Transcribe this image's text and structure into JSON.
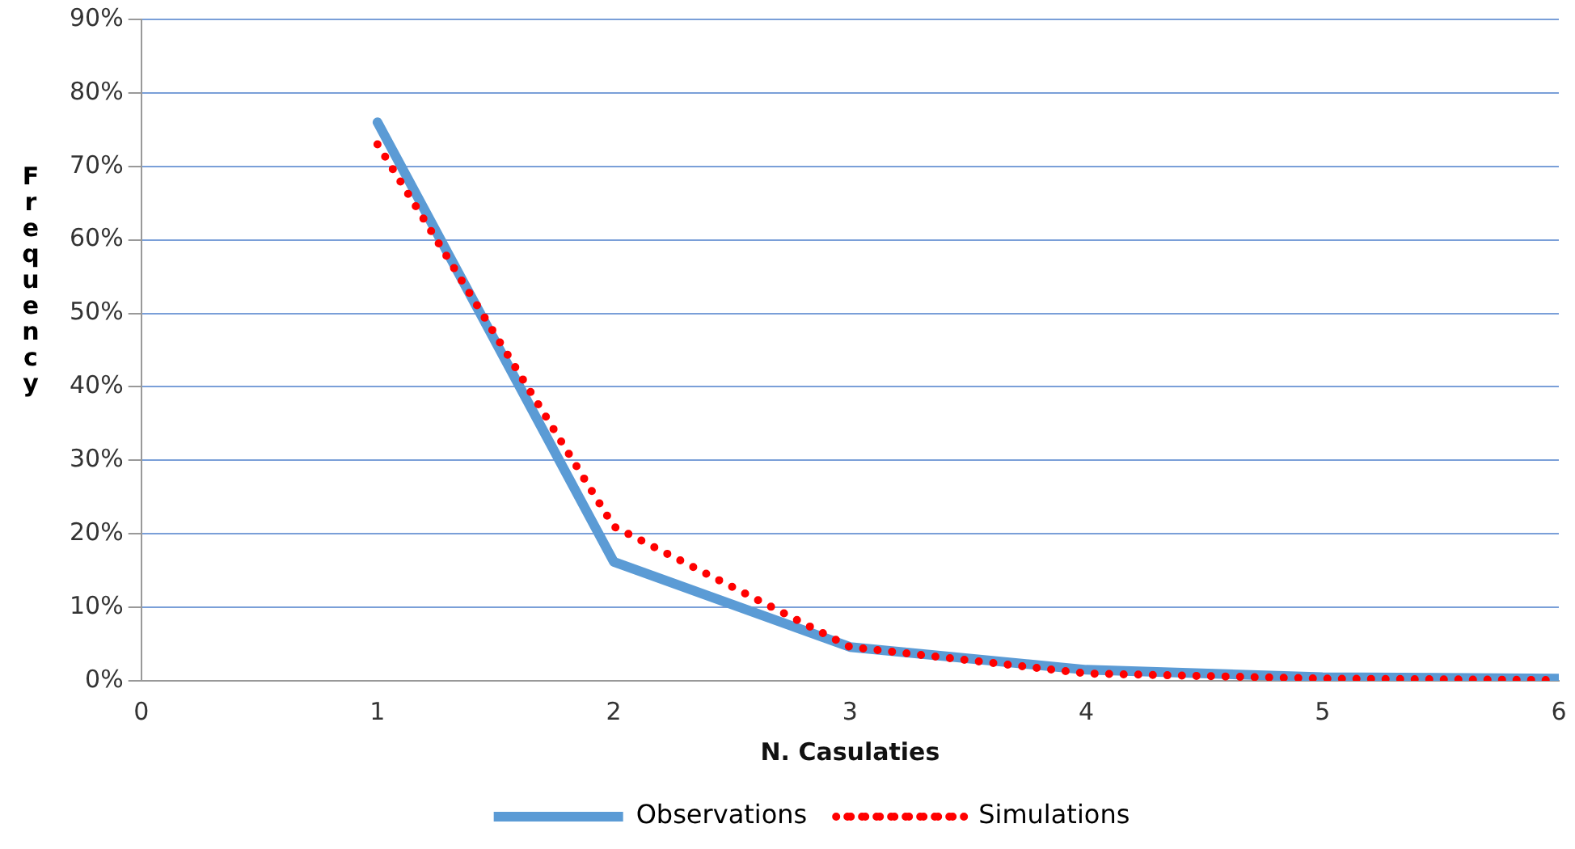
{
  "chart_data": {
    "type": "line",
    "xlabel": "N. Casulaties",
    "ylabel": "Frequency",
    "x": [
      1,
      2,
      3,
      4,
      5,
      6
    ],
    "series": [
      {
        "name": "Observations",
        "color": "#5b9bd5",
        "line_style": "solid",
        "values": [
          76,
          16.2,
          4.6,
          1.5,
          0.5,
          0.3
        ]
      },
      {
        "name": "Simulations",
        "color": "#ff0000",
        "line_style": "dotted",
        "values": [
          73,
          21,
          4.6,
          1,
          0.3,
          0.1
        ]
      }
    ],
    "xlim": [
      0,
      6
    ],
    "xticks": [
      0,
      1,
      2,
      3,
      4,
      5,
      6
    ],
    "ylim": [
      0,
      90
    ],
    "yticks": [
      {
        "value": 0,
        "label": "0%"
      },
      {
        "value": 10,
        "label": "10%"
      },
      {
        "value": 20,
        "label": "20%"
      },
      {
        "value": 30,
        "label": "30%"
      },
      {
        "value": 40,
        "label": "40%"
      },
      {
        "value": 50,
        "label": "50%"
      },
      {
        "value": 60,
        "label": "60%"
      },
      {
        "value": 70,
        "label": "70%"
      },
      {
        "value": 80,
        "label": "80%"
      },
      {
        "value": 90,
        "label": "90%"
      }
    ],
    "grid": "y",
    "legend": "bottom",
    "marker": "none"
  }
}
